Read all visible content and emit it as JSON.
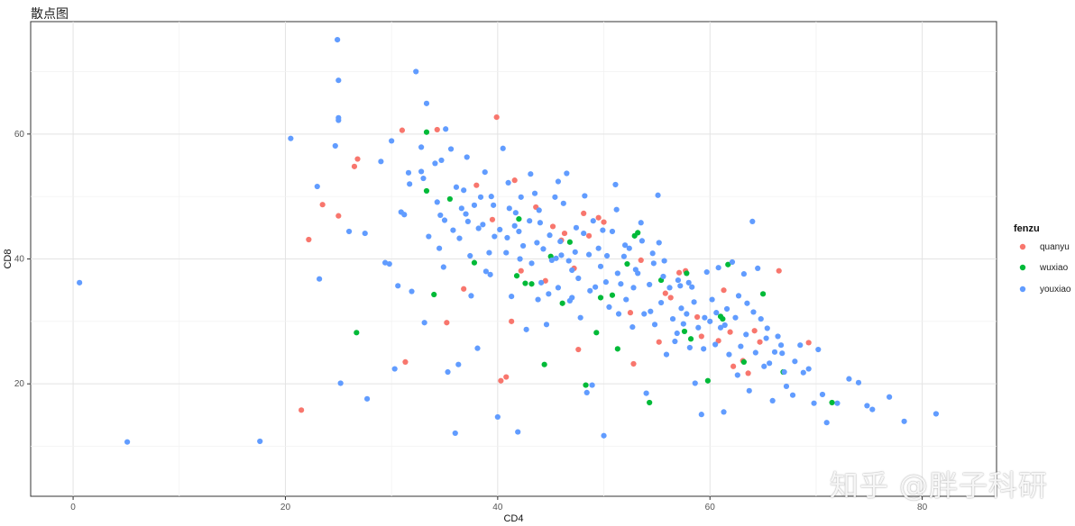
{
  "title": "散点图",
  "watermark": "知乎 @胖子科研",
  "chart_data": {
    "type": "scatter",
    "xlabel": "CD4",
    "ylabel": "CD8",
    "xlim": [
      -4,
      87
    ],
    "ylim": [
      2,
      78
    ],
    "x_ticks": [
      0,
      20,
      40,
      60,
      80
    ],
    "y_ticks": [
      20,
      40,
      60
    ],
    "grid": true,
    "legend": {
      "title": "fenzu",
      "placement": "right"
    },
    "series": [
      {
        "name": "quanyu",
        "color": "#F8766D",
        "points": [
          [
            21.5,
            15.8
          ],
          [
            22.2,
            43.1
          ],
          [
            23.5,
            48.7
          ],
          [
            25.0,
            46.9
          ],
          [
            26.5,
            54.8
          ],
          [
            26.8,
            56.0
          ],
          [
            31.0,
            60.6
          ],
          [
            31.3,
            23.5
          ],
          [
            34.3,
            60.7
          ],
          [
            35.2,
            29.8
          ],
          [
            38.0,
            51.8
          ],
          [
            39.5,
            46.3
          ],
          [
            39.9,
            62.7
          ],
          [
            40.3,
            20.5
          ],
          [
            40.8,
            21.1
          ],
          [
            41.3,
            30.0
          ],
          [
            41.6,
            52.6
          ],
          [
            42.2,
            38.1
          ],
          [
            44.5,
            36.5
          ],
          [
            45.2,
            45.2
          ],
          [
            46.0,
            43.0
          ],
          [
            46.3,
            44.1
          ],
          [
            47.2,
            38.5
          ],
          [
            47.6,
            25.5
          ],
          [
            48.1,
            47.3
          ],
          [
            48.6,
            43.7
          ],
          [
            49.5,
            46.6
          ],
          [
            50.0,
            45.9
          ],
          [
            52.5,
            31.4
          ],
          [
            52.8,
            23.2
          ],
          [
            55.2,
            26.7
          ],
          [
            55.8,
            34.5
          ],
          [
            56.3,
            33.8
          ],
          [
            57.1,
            37.8
          ],
          [
            57.7,
            38.1
          ],
          [
            58.8,
            30.7
          ],
          [
            59.2,
            27.6
          ],
          [
            60.8,
            26.9
          ],
          [
            61.3,
            35.0
          ],
          [
            61.9,
            28.3
          ],
          [
            62.2,
            22.8
          ],
          [
            63.1,
            23.7
          ],
          [
            63.6,
            21.7
          ],
          [
            64.2,
            28.5
          ],
          [
            64.7,
            26.7
          ],
          [
            66.5,
            38.1
          ],
          [
            69.3,
            26.6
          ],
          [
            36.8,
            35.2
          ],
          [
            43.6,
            48.3
          ],
          [
            53.5,
            39.8
          ]
        ]
      },
      {
        "name": "wuxiao",
        "color": "#00BA38",
        "points": [
          [
            26.7,
            28.2
          ],
          [
            33.3,
            60.3
          ],
          [
            33.3,
            50.9
          ],
          [
            34.0,
            34.3
          ],
          [
            35.5,
            49.6
          ],
          [
            37.8,
            39.4
          ],
          [
            42.0,
            46.4
          ],
          [
            42.6,
            36.1
          ],
          [
            44.4,
            23.1
          ],
          [
            45.0,
            40.4
          ],
          [
            46.1,
            32.9
          ],
          [
            46.8,
            42.7
          ],
          [
            48.3,
            19.8
          ],
          [
            49.3,
            28.2
          ],
          [
            51.3,
            25.6
          ],
          [
            52.2,
            39.2
          ],
          [
            52.9,
            43.7
          ],
          [
            53.2,
            44.2
          ],
          [
            54.3,
            17.0
          ],
          [
            55.4,
            36.6
          ],
          [
            57.6,
            28.4
          ],
          [
            57.8,
            37.7
          ],
          [
            58.2,
            27.2
          ],
          [
            59.8,
            20.5
          ],
          [
            61.0,
            30.8
          ],
          [
            61.2,
            30.4
          ],
          [
            61.7,
            39.1
          ],
          [
            63.2,
            23.5
          ],
          [
            65.0,
            34.4
          ],
          [
            66.9,
            21.9
          ],
          [
            71.5,
            17.0
          ],
          [
            49.7,
            33.8
          ],
          [
            43.2,
            36.0
          ],
          [
            50.8,
            34.2
          ],
          [
            41.8,
            37.3
          ]
        ]
      },
      {
        "name": "youxiao",
        "color": "#619CFF",
        "points": [
          [
            0.6,
            36.2
          ],
          [
            5.1,
            10.7
          ],
          [
            17.6,
            10.8
          ],
          [
            20.5,
            59.3
          ],
          [
            23.0,
            51.6
          ],
          [
            23.2,
            36.8
          ],
          [
            24.9,
            75.1
          ],
          [
            25.0,
            68.6
          ],
          [
            25.0,
            62.6
          ],
          [
            25.0,
            62.2
          ],
          [
            24.7,
            58.1
          ],
          [
            25.2,
            20.1
          ],
          [
            26.0,
            44.4
          ],
          [
            27.5,
            44.1
          ],
          [
            27.7,
            17.6
          ],
          [
            29.0,
            55.6
          ],
          [
            29.4,
            39.4
          ],
          [
            29.8,
            39.2
          ],
          [
            30.0,
            58.9
          ],
          [
            30.3,
            22.4
          ],
          [
            30.6,
            35.7
          ],
          [
            30.9,
            47.5
          ],
          [
            31.2,
            47.1
          ],
          [
            31.6,
            53.8
          ],
          [
            31.9,
            34.8
          ],
          [
            32.3,
            70.0
          ],
          [
            32.8,
            57.9
          ],
          [
            33.0,
            52.9
          ],
          [
            33.3,
            64.9
          ],
          [
            33.5,
            43.6
          ],
          [
            33.1,
            29.8
          ],
          [
            34.1,
            55.3
          ],
          [
            34.3,
            49.1
          ],
          [
            34.6,
            47.0
          ],
          [
            34.9,
            38.7
          ],
          [
            35.1,
            60.8
          ],
          [
            35.3,
            21.9
          ],
          [
            35.6,
            57.6
          ],
          [
            35.8,
            44.6
          ],
          [
            36.1,
            51.5
          ],
          [
            36.3,
            23.1
          ],
          [
            36.0,
            12.1
          ],
          [
            36.8,
            51.0
          ],
          [
            37.0,
            47.2
          ],
          [
            37.2,
            46.0
          ],
          [
            37.5,
            34.1
          ],
          [
            37.8,
            48.6
          ],
          [
            38.1,
            25.7
          ],
          [
            38.4,
            49.9
          ],
          [
            38.6,
            45.5
          ],
          [
            38.9,
            38.0
          ],
          [
            39.2,
            41.0
          ],
          [
            39.4,
            50.0
          ],
          [
            39.7,
            43.6
          ],
          [
            40.0,
            14.7
          ],
          [
            40.2,
            44.7
          ],
          [
            40.5,
            57.7
          ],
          [
            40.8,
            41.0
          ],
          [
            41.1,
            48.1
          ],
          [
            41.3,
            34.0
          ],
          [
            41.6,
            45.3
          ],
          [
            41.9,
            12.3
          ],
          [
            42.2,
            49.9
          ],
          [
            42.4,
            42.1
          ],
          [
            42.7,
            28.7
          ],
          [
            43.0,
            46.1
          ],
          [
            43.2,
            39.3
          ],
          [
            43.5,
            50.5
          ],
          [
            43.8,
            33.5
          ],
          [
            44.0,
            45.8
          ],
          [
            44.3,
            41.6
          ],
          [
            44.6,
            29.5
          ],
          [
            44.9,
            43.8
          ],
          [
            45.1,
            39.8
          ],
          [
            45.4,
            49.9
          ],
          [
            45.7,
            35.4
          ],
          [
            45.9,
            42.8
          ],
          [
            46.2,
            48.9
          ],
          [
            46.5,
            53.7
          ],
          [
            46.7,
            39.7
          ],
          [
            47.0,
            33.8
          ],
          [
            47.3,
            41.1
          ],
          [
            47.6,
            36.9
          ],
          [
            47.8,
            30.6
          ],
          [
            48.1,
            44.1
          ],
          [
            48.4,
            18.6
          ],
          [
            48.6,
            40.7
          ],
          [
            48.9,
            19.8
          ],
          [
            49.2,
            35.5
          ],
          [
            49.5,
            41.7
          ],
          [
            49.7,
            38.8
          ],
          [
            50.0,
            11.7
          ],
          [
            50.3,
            40.5
          ],
          [
            50.5,
            32.3
          ],
          [
            50.8,
            44.4
          ],
          [
            51.1,
            51.9
          ],
          [
            51.3,
            37.7
          ],
          [
            51.6,
            36.0
          ],
          [
            51.9,
            40.4
          ],
          [
            52.1,
            33.5
          ],
          [
            52.4,
            41.7
          ],
          [
            52.7,
            29.1
          ],
          [
            53.0,
            38.3
          ],
          [
            53.2,
            37.7
          ],
          [
            53.5,
            45.8
          ],
          [
            53.8,
            31.2
          ],
          [
            54.0,
            18.5
          ],
          [
            54.3,
            35.9
          ],
          [
            54.6,
            40.9
          ],
          [
            54.8,
            29.5
          ],
          [
            55.1,
            50.2
          ],
          [
            55.4,
            33.0
          ],
          [
            55.7,
            39.7
          ],
          [
            55.9,
            24.7
          ],
          [
            56.2,
            35.4
          ],
          [
            56.5,
            30.4
          ],
          [
            56.7,
            26.8
          ],
          [
            57.0,
            36.6
          ],
          [
            57.3,
            32.1
          ],
          [
            57.5,
            29.6
          ],
          [
            57.8,
            31.2
          ],
          [
            58.1,
            25.8
          ],
          [
            58.3,
            35.5
          ],
          [
            58.6,
            20.1
          ],
          [
            58.9,
            29.0
          ],
          [
            59.2,
            15.1
          ],
          [
            59.4,
            25.6
          ],
          [
            59.7,
            37.9
          ],
          [
            60.0,
            30.0
          ],
          [
            60.2,
            33.5
          ],
          [
            60.5,
            26.3
          ],
          [
            60.8,
            38.6
          ],
          [
            61.0,
            29.0
          ],
          [
            61.3,
            15.5
          ],
          [
            61.6,
            32.0
          ],
          [
            61.8,
            24.7
          ],
          [
            62.1,
            39.5
          ],
          [
            62.4,
            30.6
          ],
          [
            62.6,
            21.4
          ],
          [
            62.9,
            26.0
          ],
          [
            63.2,
            37.6
          ],
          [
            63.5,
            32.9
          ],
          [
            63.7,
            18.9
          ],
          [
            64.0,
            46.0
          ],
          [
            64.3,
            25.0
          ],
          [
            64.5,
            38.5
          ],
          [
            64.8,
            30.4
          ],
          [
            65.1,
            22.8
          ],
          [
            65.3,
            27.3
          ],
          [
            65.6,
            23.3
          ],
          [
            65.9,
            17.3
          ],
          [
            66.1,
            25.1
          ],
          [
            66.4,
            27.6
          ],
          [
            66.7,
            26.2
          ],
          [
            67.0,
            21.9
          ],
          [
            67.2,
            19.6
          ],
          [
            67.8,
            18.2
          ],
          [
            68.0,
            23.6
          ],
          [
            68.5,
            26.2
          ],
          [
            69.3,
            22.4
          ],
          [
            69.8,
            16.9
          ],
          [
            70.2,
            25.5
          ],
          [
            70.6,
            18.3
          ],
          [
            71.0,
            13.8
          ],
          [
            72.0,
            16.9
          ],
          [
            73.1,
            20.8
          ],
          [
            74.0,
            20.2
          ],
          [
            74.8,
            16.5
          ],
          [
            75.3,
            15.9
          ],
          [
            76.9,
            17.9
          ],
          [
            78.3,
            14.0
          ],
          [
            81.3,
            15.2
          ],
          [
            53.6,
            42.9
          ],
          [
            49.0,
            46.1
          ],
          [
            47.0,
            38.2
          ],
          [
            45.5,
            40.1
          ],
          [
            43.7,
            42.6
          ],
          [
            42.1,
            40.0
          ],
          [
            39.3,
            37.5
          ],
          [
            37.4,
            40.5
          ],
          [
            44.1,
            36.2
          ],
          [
            46.0,
            40.6
          ],
          [
            50.2,
            36.3
          ],
          [
            52.8,
            35.4
          ],
          [
            55.6,
            37.2
          ],
          [
            58.5,
            33.1
          ],
          [
            60.6,
            31.4
          ],
          [
            56.9,
            28.1
          ],
          [
            54.4,
            31.6
          ],
          [
            51.4,
            31.2
          ],
          [
            48.7,
            34.9
          ],
          [
            46.8,
            33.3
          ],
          [
            44.8,
            34.4
          ],
          [
            42.0,
            44.4
          ],
          [
            40.9,
            43.4
          ],
          [
            38.2,
            44.9
          ],
          [
            36.4,
            43.3
          ],
          [
            35.0,
            46.2
          ],
          [
            34.5,
            41.7
          ],
          [
            36.6,
            48.1
          ],
          [
            39.6,
            48.6
          ],
          [
            41.7,
            47.4
          ],
          [
            43.9,
            47.8
          ],
          [
            47.4,
            45.0
          ],
          [
            49.9,
            44.6
          ],
          [
            52.0,
            42.2
          ],
          [
            54.7,
            39.3
          ],
          [
            57.2,
            35.7
          ],
          [
            59.5,
            30.6
          ],
          [
            61.4,
            29.4
          ],
          [
            63.4,
            27.9
          ],
          [
            65.4,
            28.9
          ],
          [
            66.8,
            24.9
          ],
          [
            68.8,
            21.8
          ],
          [
            62.7,
            34.1
          ],
          [
            64.1,
            31.5
          ],
          [
            58.0,
            36.2
          ],
          [
            55.2,
            42.6
          ],
          [
            51.2,
            47.9
          ],
          [
            48.2,
            50.1
          ],
          [
            45.7,
            52.4
          ],
          [
            43.1,
            53.6
          ],
          [
            41.0,
            52.2
          ],
          [
            38.8,
            53.9
          ],
          [
            37.1,
            56.3
          ],
          [
            34.7,
            55.8
          ],
          [
            32.8,
            54.0
          ],
          [
            31.7,
            52.0
          ]
        ]
      }
    ]
  }
}
